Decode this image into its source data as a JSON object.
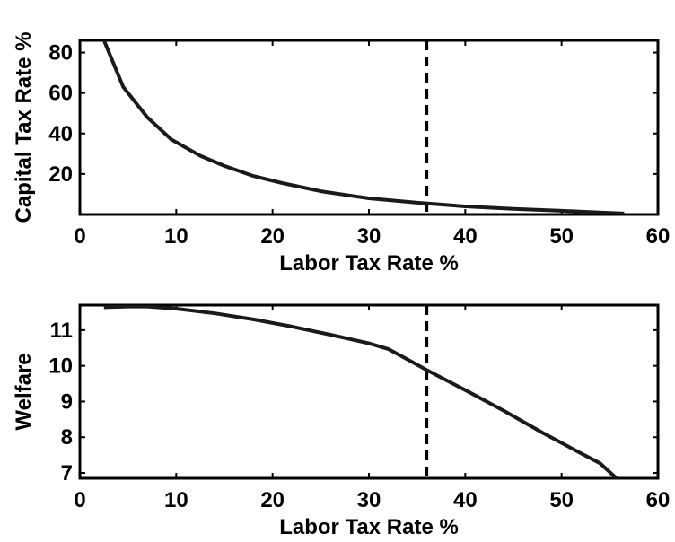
{
  "chart_data": [
    {
      "type": "line",
      "xlabel": "Labor Tax Rate %",
      "ylabel": "Capital Tax Rate %",
      "xlim": [
        0,
        60
      ],
      "ylim": [
        0,
        86
      ],
      "xticks": [
        0,
        10,
        20,
        30,
        40,
        50,
        60
      ],
      "yticks": [
        20,
        40,
        60,
        80
      ],
      "grid": false,
      "series": [
        {
          "x": [
            2.5,
            4.5,
            7,
            9.5,
            12.5,
            15,
            18,
            21,
            25,
            30,
            35,
            40,
            45,
            50,
            55,
            56.5
          ],
          "y": [
            86,
            63,
            48,
            37,
            29,
            24,
            19,
            15.5,
            11.5,
            8,
            5.8,
            4,
            2.8,
            1.8,
            0.8,
            0.5
          ]
        }
      ],
      "vline": {
        "x": 36,
        "style": "dashed"
      }
    },
    {
      "type": "line",
      "xlabel": "Labor Tax Rate %",
      "ylabel": "Welfare",
      "xlim": [
        0,
        60
      ],
      "ylim": [
        6.85,
        11.7
      ],
      "xticks": [
        0,
        10,
        20,
        30,
        40,
        50,
        60
      ],
      "yticks": [
        7,
        8,
        9,
        10,
        11
      ],
      "grid": false,
      "series": [
        {
          "x": [
            2.5,
            5,
            7,
            10,
            14,
            18,
            22,
            26,
            30,
            32,
            34,
            36,
            40,
            44,
            48,
            52,
            54,
            55.7
          ],
          "y": [
            11.64,
            11.66,
            11.66,
            11.6,
            11.47,
            11.3,
            11.1,
            10.87,
            10.63,
            10.47,
            10.18,
            9.88,
            9.32,
            8.74,
            8.13,
            7.55,
            7.27,
            6.85
          ]
        }
      ],
      "vline": {
        "x": 36,
        "style": "dashed"
      }
    }
  ]
}
